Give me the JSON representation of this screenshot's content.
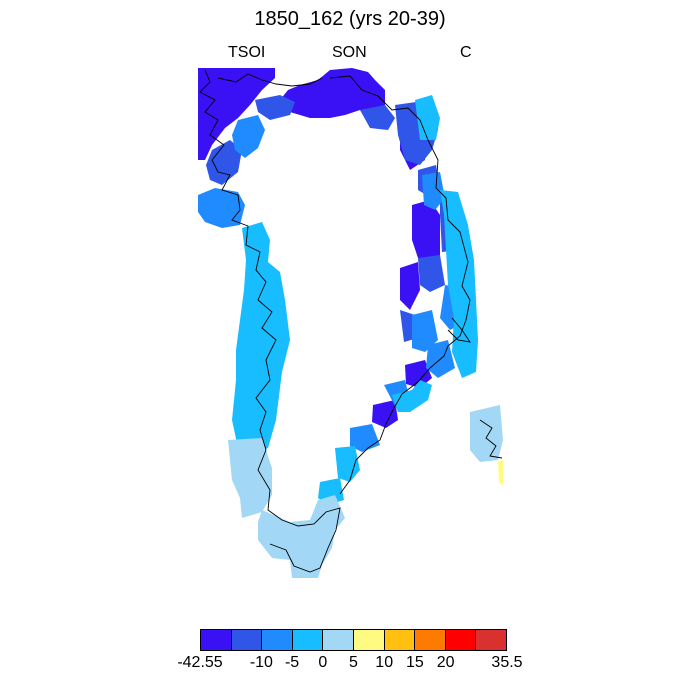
{
  "title": "1850_162 (yrs 20-39)",
  "subtitles": {
    "left": "TSOI",
    "center": "SON",
    "right": "C"
  },
  "colorbar": {
    "colors": [
      "#3a10f5",
      "#2f56e9",
      "#208bff",
      "#17bdff",
      "#a2d8f5",
      "#fffa80",
      "#ffc010",
      "#ff7a00",
      "#ff0000",
      "#d93030"
    ],
    "labels": [
      "-42.55",
      "-10",
      "-5",
      "0",
      "5",
      "10",
      "15",
      "20",
      "35.5"
    ]
  },
  "map": {
    "region": "Greenland",
    "field_color_classes": [
      "purple",
      "blue",
      "mid-blue",
      "light-blue",
      "pale-blue",
      "yellow"
    ]
  }
}
